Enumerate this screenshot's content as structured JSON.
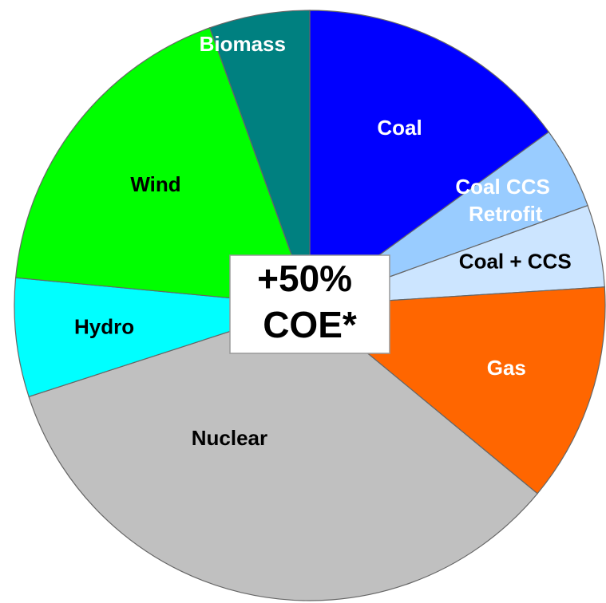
{
  "chart_data": {
    "type": "pie",
    "categories": [
      "Coal",
      "Coal CCS Retrofit",
      "Coal + CCS",
      "Gas",
      "Nuclear",
      "Hydro",
      "Wind",
      "Biomass"
    ],
    "values": [
      15,
      4.5,
      4.5,
      12,
      34,
      6.5,
      18,
      5.5
    ],
    "colors": [
      "#0000ff",
      "#99ccff",
      "#cce5ff",
      "#ff6600",
      "#c0c0c0",
      "#00ffff",
      "#00ff00",
      "#008080"
    ],
    "label_colors": [
      "#ffffff",
      "#ffffff",
      "#000000",
      "#ffffff",
      "#000000",
      "#000000",
      "#000000",
      "#ffffff"
    ],
    "center_label": "+50% COE*"
  }
}
